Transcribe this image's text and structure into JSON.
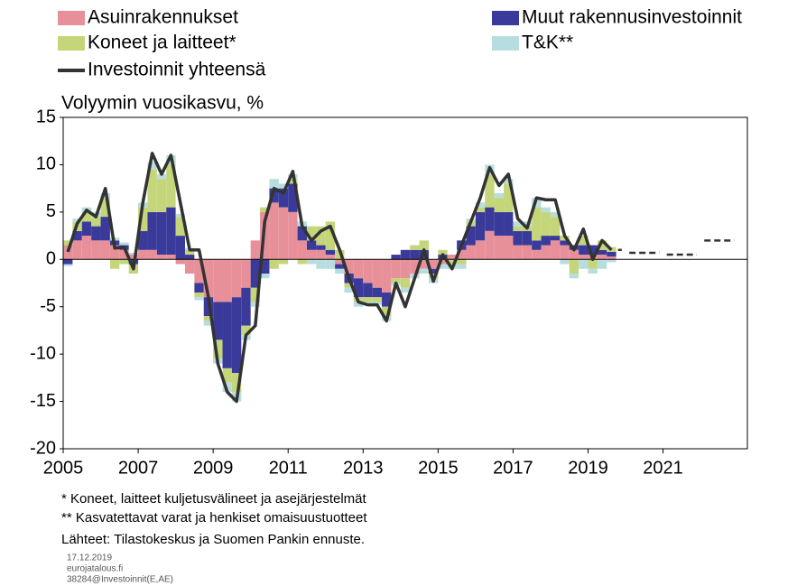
{
  "chart_data": {
    "type": "bar",
    "ylabel": "Volyymin vuosikasvu, %",
    "x": [
      2005.125,
      2005.375,
      2005.625,
      2005.875,
      2006.125,
      2006.375,
      2006.625,
      2006.875,
      2007.125,
      2007.375,
      2007.625,
      2007.875,
      2008.125,
      2008.375,
      2008.625,
      2008.875,
      2009.125,
      2009.375,
      2009.625,
      2009.875,
      2010.125,
      2010.375,
      2010.625,
      2010.875,
      2011.125,
      2011.375,
      2011.625,
      2011.875,
      2012.125,
      2012.375,
      2012.625,
      2012.875,
      2013.125,
      2013.375,
      2013.625,
      2013.875,
      2014.125,
      2014.375,
      2014.625,
      2014.875,
      2015.125,
      2015.375,
      2015.625,
      2015.875,
      2016.125,
      2016.375,
      2016.625,
      2016.875,
      2017.125,
      2017.375,
      2017.625,
      2017.875,
      2018.125,
      2018.375,
      2018.625,
      2018.875,
      2019.125,
      2019.375,
      2019.625
    ],
    "series": [
      {
        "name": "Asuinrakennukset",
        "color": "#e8909a",
        "values": [
          1.5,
          2.0,
          2.5,
          2.0,
          2.0,
          1.5,
          1.0,
          0.5,
          1.0,
          1.0,
          0.5,
          0.5,
          -0.5,
          -1.5,
          -2.5,
          -4.0,
          -4.5,
          -4.5,
          -4.0,
          -3.0,
          2.0,
          5.0,
          6.0,
          5.5,
          5.0,
          2.0,
          1.0,
          1.0,
          0.5,
          -0.5,
          -1.5,
          -2.0,
          -2.5,
          -3.0,
          -3.5,
          -2.0,
          -2.0,
          -1.5,
          -1.0,
          -1.0,
          -0.5,
          0.5,
          1.0,
          1.5,
          2.0,
          3.0,
          2.5,
          2.5,
          1.5,
          1.5,
          1.0,
          1.5,
          2.0,
          1.5,
          1.0,
          0.5,
          0.5,
          0.5,
          0.3
        ]
      },
      {
        "name": "Muut rakennusinvestoinnit",
        "color": "#3a3a9a",
        "values": [
          -0.5,
          1.0,
          1.5,
          1.5,
          2.5,
          0.5,
          0.5,
          -0.5,
          2.0,
          4.0,
          4.5,
          5.0,
          2.5,
          0.5,
          -1.0,
          -2.0,
          -4.0,
          -7.0,
          -8.0,
          -4.0,
          -3.0,
          -1.5,
          1.5,
          2.0,
          3.0,
          1.5,
          1.0,
          0.5,
          0.5,
          -0.5,
          -1.0,
          -2.0,
          -1.5,
          -1.0,
          -1.5,
          0.5,
          1.0,
          1.0,
          1.0,
          -0.5,
          0.5,
          0,
          1.0,
          2.0,
          3.0,
          2.5,
          2.5,
          2.5,
          1.5,
          1.5,
          1.0,
          1.0,
          0.5,
          0.5,
          0.5,
          1.0,
          1.0,
          0.5,
          0.5
        ]
      },
      {
        "name": "Koneet ja laitteet*",
        "color": "#c5d67a",
        "values": [
          0.5,
          1.0,
          1.0,
          1.0,
          2.0,
          -1.0,
          -0.5,
          -1.0,
          2.5,
          4.5,
          3.5,
          4.5,
          2.0,
          0.5,
          -0.5,
          -0.5,
          -2.0,
          -1.5,
          -2.0,
          -1.0,
          -1.5,
          0.5,
          -1.0,
          -0.5,
          0.5,
          -0.5,
          1.5,
          2.0,
          3.0,
          1.0,
          -0.5,
          -0.5,
          -0.5,
          -0.5,
          -1.0,
          -0.5,
          -1.0,
          0.5,
          1.0,
          -0.5,
          0.5,
          -0.5,
          -0.5,
          0.5,
          0.5,
          3.5,
          1.5,
          3.0,
          0.5,
          0.5,
          3.5,
          2.5,
          2.0,
          0.5,
          -1.5,
          1.0,
          -1.0,
          1.0,
          0.5
        ]
      },
      {
        "name": "T&K**",
        "color": "#b8dde0",
        "values": [
          -0.2,
          0.3,
          0.5,
          0.5,
          0.5,
          0.3,
          0.3,
          0.2,
          0.5,
          0.8,
          0.5,
          1.0,
          0.3,
          0.2,
          -0.3,
          -0.5,
          -0.5,
          -1.0,
          -1.0,
          -0.5,
          -0.5,
          -0.5,
          1.0,
          0.5,
          0.5,
          0.5,
          -0.5,
          -1.0,
          -1.0,
          -0.5,
          -0.5,
          -0.5,
          -0.3,
          -0.3,
          -0.5,
          -0.3,
          -0.5,
          -0.5,
          -0.5,
          -0.5,
          -0.5,
          -0.5,
          -0.5,
          0.3,
          0.5,
          1.0,
          0.5,
          0.5,
          0.5,
          0.5,
          1.0,
          0.5,
          0.5,
          -0.5,
          -0.5,
          -1.0,
          -0.5,
          -1.0,
          -0.3
        ]
      }
    ],
    "total": {
      "name": "Investoinnit yhteensä",
      "color": "#333333",
      "values": [
        0.8,
        3.8,
        5.2,
        4.5,
        7.5,
        1.2,
        1.3,
        -1.0,
        6.0,
        11.2,
        9.0,
        11.0,
        6.0,
        1.0,
        1.0,
        -4.0,
        -11.0,
        -14.0,
        -15.0,
        -8.0,
        -7.0,
        4.0,
        7.5,
        7.0,
        9.3,
        3.5,
        2.0,
        3.0,
        3.5,
        1.0,
        -2.0,
        -4.5,
        -4.8,
        -4.8,
        -6.5,
        -2.5,
        -5.0,
        -2.0,
        1.0,
        -2.3,
        0.5,
        -1.0,
        1.5,
        4.0,
        6.5,
        9.7,
        7.8,
        9.0,
        4.3,
        3.3,
        6.5,
        6.3,
        6.3,
        2.5,
        1.0,
        3.2,
        0.0,
        2.0,
        1.0
      ]
    },
    "forecast": {
      "x": [
        2019,
        2020,
        2021,
        2022
      ],
      "values": [
        1.0,
        0.7,
        0.5,
        2.0
      ]
    },
    "xlim": [
      2005,
      2023.25
    ],
    "xticks": [
      2005,
      2007,
      2009,
      2011,
      2013,
      2015,
      2017,
      2019,
      2021
    ],
    "ylim": [
      -20,
      15
    ],
    "yticks": [
      -20,
      -15,
      -10,
      -5,
      0,
      5,
      10,
      15
    ]
  },
  "notes": [
    "* Koneet, laitteet kuljetusvälineet ja asejärjestelmät",
    "** Kasvatettavat varat ja henkiset omaisuustuotteet"
  ],
  "source": "Lähteet: Tilastokeskus ja Suomen Pankin ennuste.",
  "meta": [
    "17.12.2019",
    "eurojatalous.fi",
    "38284@Investoinnit(E,AE)"
  ]
}
